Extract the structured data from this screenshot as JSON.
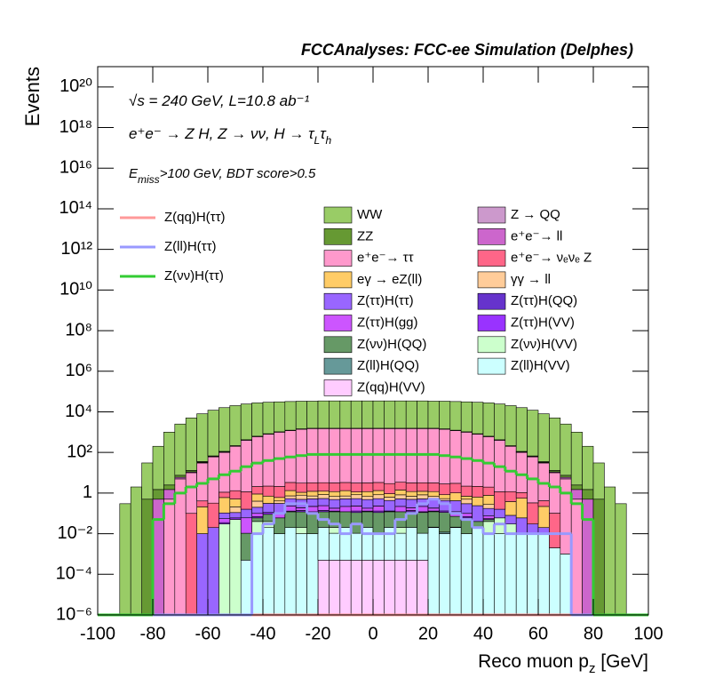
{
  "chart_data": {
    "type": "stacked_histogram",
    "title": "FCCAnalyses: FCC-ee Simulation (Delphes)",
    "y_label": "Events",
    "x_label": [
      "Reco muon p",
      "z",
      " [GeV]"
    ],
    "annotations": [
      [
        "√s = 240 GeV, L=10.8 ab⁻¹"
      ],
      [
        "e⁺e⁻ → Z H, Z → νν, H → τ",
        "L",
        "τ",
        "h"
      ],
      [
        "E",
        "miss",
        ">100 GeV, BDT score>0.5"
      ]
    ],
    "log_y": true,
    "xlim": [
      -100,
      100
    ],
    "xticks": [
      -100,
      -80,
      -60,
      -40,
      -20,
      0,
      20,
      40,
      60,
      80,
      100
    ],
    "ylim": [
      1e-06,
      1e+21
    ],
    "yticks": [
      {
        "value": 1e-06,
        "label": "10⁻⁶"
      },
      {
        "value": 0.0001,
        "label": "10⁻⁴"
      },
      {
        "value": 0.01,
        "label": "10⁻²"
      },
      1,
      {
        "value": 100,
        "label": "10²"
      },
      {
        "value": 10000.0,
        "label": "10⁴"
      },
      {
        "value": 1000000.0,
        "label": "10⁶"
      },
      {
        "value": 100000000.0,
        "label": "10⁸"
      },
      {
        "value": 10000000000.0,
        "label": "10¹⁰"
      },
      {
        "value": 1000000000000.0,
        "label": "10¹²"
      },
      {
        "value": 100000000000000.0,
        "label": "10¹⁴"
      },
      {
        "value": 1e+16,
        "label": "10¹⁶"
      },
      {
        "value": 1e+18,
        "label": "10¹⁸"
      },
      {
        "value": 1e+20,
        "label": "10²⁰"
      }
    ],
    "bins": [
      -100,
      -96,
      -92,
      -88,
      -84,
      -80,
      -76,
      -72,
      -68,
      -64,
      -60,
      -56,
      -52,
      -48,
      -44,
      -40,
      -36,
      -32,
      -28,
      -24,
      -20,
      -16,
      -12,
      -8,
      -4,
      0,
      4,
      8,
      12,
      16,
      20,
      24,
      28,
      32,
      36,
      40,
      44,
      48,
      52,
      56,
      60,
      64,
      68,
      72,
      76,
      80,
      84,
      88,
      92,
      96,
      100
    ],
    "series": [
      {
        "name": "WW",
        "color": "#99cc66",
        "values": [
          0,
          0,
          0.3,
          2,
          30,
          200,
          1000,
          2500,
          5000,
          8000,
          12000,
          16000,
          20000,
          24000,
          27000,
          29000,
          30000,
          31000,
          32000,
          32000,
          33000,
          33000,
          33000,
          33000,
          33000,
          33000,
          33000,
          33000,
          33000,
          33000,
          32000,
          32000,
          31000,
          30000,
          29000,
          27000,
          24000,
          20000,
          16000,
          12000,
          8000,
          5000,
          2500,
          1000,
          200,
          30,
          2,
          0.3,
          0,
          0
        ]
      },
      {
        "name": "Z → QQ",
        "color": "#cc99cc",
        "values": [
          0,
          0,
          0,
          0,
          0,
          0,
          0,
          0,
          0,
          0.2,
          0.5,
          1,
          2,
          3,
          4,
          5,
          5,
          6,
          6,
          6,
          6,
          6,
          6,
          6,
          6,
          6,
          6,
          6,
          6,
          6,
          6,
          6,
          5,
          5,
          4,
          3,
          2,
          1,
          0.5,
          0.2,
          0,
          0,
          0,
          0,
          0,
          0,
          0,
          0,
          0,
          0
        ]
      },
      {
        "name": "ZZ",
        "color": "#669933",
        "values": [
          0,
          0,
          0,
          0,
          0.5,
          1,
          1,
          1.5,
          2,
          3,
          5,
          8,
          10,
          15,
          20,
          25,
          30,
          35,
          40,
          40,
          40,
          40,
          40,
          40,
          40,
          40,
          40,
          40,
          40,
          40,
          40,
          40,
          35,
          30,
          25,
          20,
          15,
          10,
          8,
          5,
          3,
          2,
          1.5,
          1,
          1,
          0.5,
          0,
          0,
          0,
          0
        ]
      },
      {
        "name": "e⁺e⁻→ ll",
        "color": "#cc66cc",
        "values": [
          0,
          0,
          0,
          0,
          0,
          0.5,
          1,
          1,
          1,
          2,
          2,
          3,
          3,
          4,
          5,
          5,
          6,
          6,
          7,
          7,
          7,
          7,
          7,
          7,
          7,
          7,
          7,
          7,
          7,
          7,
          7,
          7,
          6,
          6,
          5,
          5,
          4,
          3,
          3,
          2,
          2,
          1,
          1,
          1,
          0.5,
          0,
          0,
          0,
          0,
          0
        ]
      },
      {
        "name": "e⁺e⁻→ ττ",
        "color": "#ff99cc",
        "values": [
          0,
          0,
          0,
          0,
          0,
          0,
          0.5,
          5,
          10,
          30,
          60,
          100,
          200,
          400,
          600,
          800,
          1000,
          1200,
          1400,
          1500,
          1500,
          1500,
          1500,
          1500,
          1500,
          1500,
          1500,
          1500,
          1500,
          1500,
          1500,
          1400,
          1200,
          1000,
          800,
          600,
          400,
          200,
          100,
          60,
          30,
          10,
          5,
          0.5,
          0,
          0,
          0,
          0,
          0,
          0
        ]
      },
      {
        "name": "e⁺e⁻→ νₑνₑ Z",
        "color": "#ff6688",
        "values": [
          0,
          0,
          0,
          0,
          0,
          0,
          0,
          0,
          0.1,
          0.2,
          0.3,
          0.5,
          0.8,
          1,
          1.2,
          1.5,
          1.5,
          2,
          2,
          2,
          2,
          2,
          2,
          2,
          2,
          2,
          2,
          2,
          2,
          2,
          2,
          2,
          2,
          1.5,
          1.5,
          1.2,
          1,
          0.8,
          0.5,
          0.3,
          0.2,
          0.1,
          0,
          0,
          0,
          0,
          0,
          0,
          0,
          0
        ]
      },
      {
        "name": "eγ → eZ(ll)",
        "color": "#ffcc66",
        "values": [
          0,
          0,
          0,
          0,
          0,
          0,
          0,
          0,
          0,
          0.2,
          0,
          0.5,
          0.3,
          0,
          0.5,
          0.4,
          0.2,
          0.6,
          0.3,
          0.5,
          0.4,
          0.5,
          0.6,
          0.3,
          0.5,
          0.5,
          0.3,
          0.6,
          0.5,
          0.4,
          0.5,
          0.3,
          0.6,
          0.2,
          0.4,
          0.5,
          0,
          0.3,
          0.5,
          0,
          0.2,
          0,
          0,
          0,
          0,
          0,
          0,
          0,
          0,
          0
        ]
      },
      {
        "name": "γγ → ll",
        "color": "#ffcc99",
        "values": [
          0,
          0,
          0,
          0,
          0,
          0,
          0,
          0,
          0,
          0,
          0,
          0,
          0.1,
          0,
          0.2,
          0,
          0.1,
          0.2,
          0.3,
          0.2,
          0.3,
          0.2,
          0.2,
          0.3,
          0.2,
          0.3,
          0.2,
          0.3,
          0.2,
          0.3,
          0.2,
          0.1,
          0,
          0.2,
          0,
          0.1,
          0,
          0,
          0,
          0,
          0,
          0,
          0,
          0,
          0,
          0,
          0,
          0,
          0,
          0
        ]
      },
      {
        "name": "Z(ττ)H(ττ)",
        "color": "#9966ff",
        "values": [
          0,
          0,
          0,
          0,
          0,
          0,
          0,
          0,
          0,
          0.01,
          0.02,
          0.05,
          0.05,
          0.1,
          0.1,
          0.2,
          0.2,
          0.3,
          0.3,
          0.3,
          0.3,
          0.3,
          0.3,
          0.3,
          0.3,
          0.3,
          0.3,
          0.3,
          0.3,
          0.3,
          0.3,
          0.3,
          0.3,
          0.2,
          0.2,
          0.1,
          0.1,
          0.05,
          0.05,
          0.02,
          0.01,
          0,
          0,
          0,
          0,
          0,
          0,
          0,
          0,
          0
        ]
      },
      {
        "name": "Z(ττ)H(QQ)",
        "color": "#6633cc",
        "values": [
          0,
          0,
          0,
          0,
          0,
          0,
          0,
          0,
          0,
          0,
          0,
          0,
          0,
          0,
          0,
          0.001,
          0,
          0,
          0.0003,
          0.002,
          0,
          0.0005,
          0,
          0.001,
          0,
          0.0002,
          0.001,
          0,
          0.0005,
          0,
          0.003,
          0,
          0,
          0.0002,
          0,
          0,
          0,
          0,
          0,
          0,
          0,
          0,
          0,
          0,
          0,
          0,
          0,
          0,
          0,
          0
        ]
      },
      {
        "name": "Z(ττ)H(gg)",
        "color": "#cc55ff",
        "values": [
          0,
          0,
          0,
          0,
          0,
          0,
          0,
          0,
          0,
          0,
          0,
          0.02,
          0,
          0.05,
          0.03,
          0,
          0.05,
          0.1,
          0.05,
          0.1,
          0.1,
          0.05,
          0.1,
          0.1,
          0.05,
          0.1,
          0,
          0.1,
          0.05,
          0.1,
          0.05,
          0,
          0.05,
          0.03,
          0,
          0.02,
          0,
          0,
          0,
          0,
          0,
          0,
          0,
          0,
          0,
          0,
          0,
          0,
          0,
          0
        ]
      },
      {
        "name": "Z(ττ)H(VV)",
        "color": "#9933ff",
        "values": [
          0,
          0,
          0,
          0,
          0,
          0,
          0,
          0,
          0,
          0,
          0,
          0.005,
          0.01,
          0,
          0.01,
          0.02,
          0,
          0.01,
          0.02,
          0.01,
          0.02,
          0.01,
          0,
          0.02,
          0.01,
          0.02,
          0.01,
          0,
          0.02,
          0.01,
          0.01,
          0.02,
          0,
          0.01,
          0,
          0.005,
          0,
          0,
          0,
          0,
          0,
          0,
          0,
          0,
          0,
          0,
          0,
          0,
          0,
          0
        ]
      },
      {
        "name": "Z(νν)H(QQ)",
        "color": "#669966",
        "values": [
          0,
          0,
          0,
          0,
          0,
          0,
          0,
          0,
          0,
          0,
          0,
          0,
          0,
          0.01,
          0.02,
          0.05,
          0.05,
          0.1,
          0.1,
          0.1,
          0.1,
          0.1,
          0.1,
          0.1,
          0.1,
          0.1,
          0.1,
          0.1,
          0.1,
          0.1,
          0.1,
          0.1,
          0.05,
          0.05,
          0.02,
          0.01,
          0,
          0,
          0,
          0,
          0,
          0,
          0,
          0,
          0,
          0,
          0,
          0,
          0,
          0
        ]
      },
      {
        "name": "Z(νν)H(VV)",
        "color": "#ccffcc",
        "values": [
          0,
          0,
          0,
          0,
          0,
          0,
          0,
          0,
          0,
          0,
          0,
          0.03,
          0.05,
          0,
          0.03,
          0.02,
          0,
          0,
          0.01,
          0,
          0,
          0.01,
          0,
          0,
          0,
          0,
          0,
          0.01,
          0,
          0,
          0,
          0,
          0,
          0,
          0,
          0.03,
          0.05,
          0.02,
          0,
          0,
          0,
          0,
          0,
          0,
          0,
          0,
          0,
          0,
          0,
          0
        ]
      },
      {
        "name": "Z(ll)H(QQ)",
        "color": "#669999",
        "values": [
          0,
          0,
          0,
          0,
          0,
          0,
          0,
          0,
          0,
          0,
          0,
          0,
          0,
          0,
          0,
          0,
          0,
          0,
          0,
          0,
          0,
          0,
          0,
          0,
          0,
          0,
          0,
          0,
          0,
          0,
          0.001,
          0.002,
          0.001,
          0,
          0,
          0,
          0,
          0,
          0,
          0,
          0,
          0,
          0,
          0,
          0,
          0,
          0,
          0,
          0,
          0
        ]
      },
      {
        "name": "Z(ll)H(VV)",
        "color": "#ccffff",
        "values": [
          0,
          0,
          0,
          0,
          0,
          0,
          0,
          0,
          0,
          0,
          0,
          0,
          0,
          0.0005,
          0.01,
          0.02,
          0.01,
          0.02,
          0.01,
          0.01,
          0.02,
          0.01,
          0.02,
          0.01,
          0.02,
          0.01,
          0.02,
          0.01,
          0.02,
          0.01,
          0.02,
          0.01,
          0.02,
          0.01,
          0.02,
          0.01,
          0.01,
          0.01,
          0.01,
          0.01,
          0.01,
          0.002,
          0.001,
          0,
          0,
          0,
          0,
          0,
          0,
          0
        ]
      },
      {
        "name": "Z(qq)H(VV)",
        "color": "#ffccff",
        "values": [
          0,
          0,
          0,
          0,
          0,
          0,
          0,
          0,
          0,
          0,
          0,
          0,
          0,
          0,
          0,
          0,
          0,
          0,
          0,
          0,
          0.0005,
          0.0005,
          0.0005,
          0.0005,
          0.0005,
          0.0005,
          0.0005,
          0.0005,
          0.0005,
          0.0005,
          0,
          0,
          0,
          0,
          0,
          0,
          0,
          0,
          0,
          0,
          0,
          0,
          0,
          0,
          0,
          0,
          0,
          0,
          0,
          0
        ]
      }
    ],
    "line_series": [
      {
        "name": "Z(qq)H(ττ)",
        "color": "#ff9999",
        "values": [
          0,
          0,
          0,
          0,
          0,
          0,
          0,
          0,
          0,
          0,
          0,
          0,
          0,
          0,
          0,
          0,
          0,
          0,
          0,
          0,
          0,
          0,
          0,
          0,
          0,
          0,
          0,
          0,
          0,
          0,
          0,
          0,
          0,
          0,
          1e-06,
          1e-06,
          1e-06,
          0,
          0,
          0,
          0,
          0,
          0,
          0,
          0,
          0,
          0,
          0,
          0,
          0
        ]
      },
      {
        "name": "Z(ll)H(ττ)",
        "color": "#9999ff",
        "values": [
          0,
          0,
          0,
          0,
          0,
          0,
          0,
          0,
          0,
          0,
          0,
          0,
          0,
          0,
          0.01,
          0.03,
          0.1,
          0.3,
          0.3,
          0.1,
          0.05,
          0.03,
          0.01,
          0.03,
          0.01,
          0.01,
          0.01,
          0.05,
          0.1,
          0.3,
          0.5,
          0.3,
          0.1,
          0.05,
          0.02,
          0.01,
          0.03,
          0.01,
          0.01,
          0.01,
          0.01,
          0.01,
          0.01,
          0,
          0,
          0,
          0,
          0,
          0,
          0
        ]
      },
      {
        "name": "Z(νν)H(ττ)",
        "color": "#33cc33",
        "values": [
          0,
          0,
          0,
          0,
          0,
          0.05,
          0.3,
          1,
          2,
          3,
          5,
          8,
          12,
          20,
          30,
          40,
          50,
          60,
          70,
          80,
          80,
          80,
          80,
          80,
          80,
          80,
          80,
          80,
          80,
          80,
          80,
          70,
          60,
          50,
          40,
          30,
          20,
          12,
          8,
          5,
          3,
          2,
          1,
          0.3,
          0.05,
          0,
          0,
          0,
          0,
          0
        ]
      }
    ]
  }
}
